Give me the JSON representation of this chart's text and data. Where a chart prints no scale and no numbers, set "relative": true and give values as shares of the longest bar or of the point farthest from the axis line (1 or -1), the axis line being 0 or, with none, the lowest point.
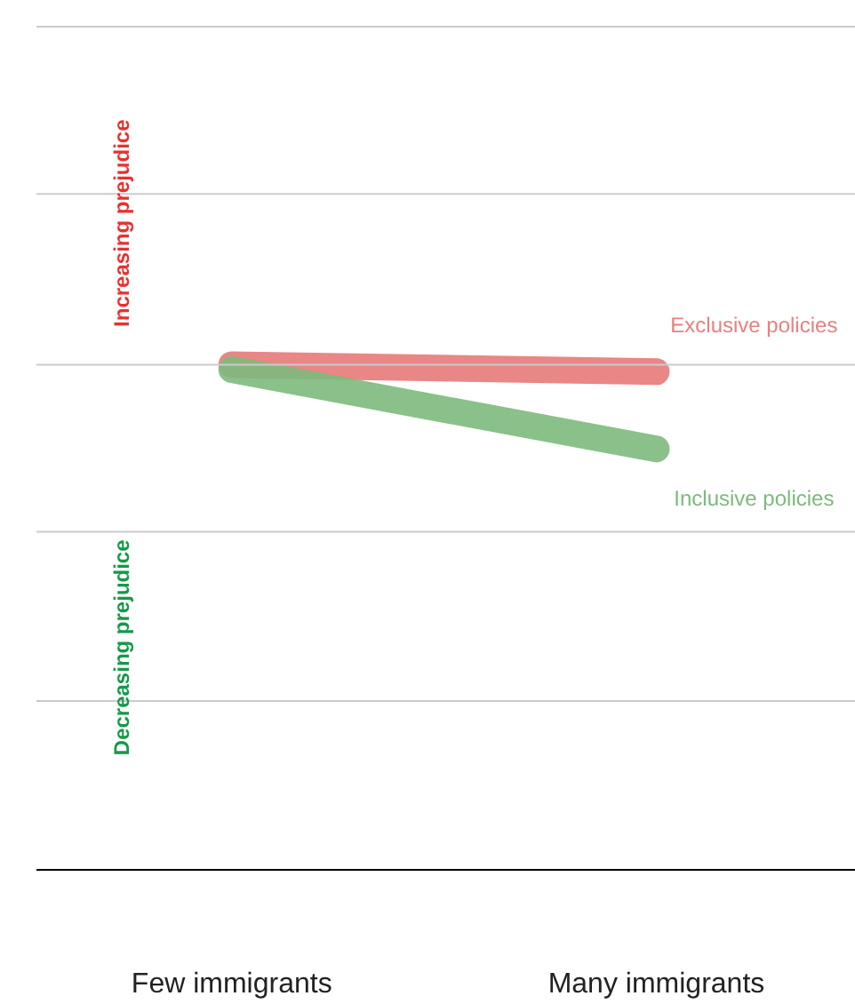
{
  "chart_data": {
    "type": "line",
    "relative": true,
    "categories": [
      "Few immigrants",
      "Many immigrants"
    ],
    "series": [
      {
        "name": "Exclusive policies",
        "color": "#e88080",
        "values": [
          1.0,
          0.986
        ]
      },
      {
        "name": "Inclusive policies",
        "color": "#7dba7d",
        "values": [
          0.99,
          0.833
        ]
      }
    ],
    "annotations": [
      "Increasing prejudice",
      "Decreasing prejudice"
    ],
    "ref_lines": [
      {
        "axis": "y",
        "value": 0.334,
        "color": "#cccccc"
      },
      {
        "axis": "y",
        "value": 0.669,
        "color": "#cccccc"
      },
      {
        "axis": "y",
        "value": 1.0,
        "color": "#cccccc"
      },
      {
        "axis": "y",
        "value": 1.338,
        "color": "#cccccc"
      },
      {
        "axis": "y",
        "value": 1.669,
        "color": "#cccccc"
      }
    ],
    "legend": false
  }
}
